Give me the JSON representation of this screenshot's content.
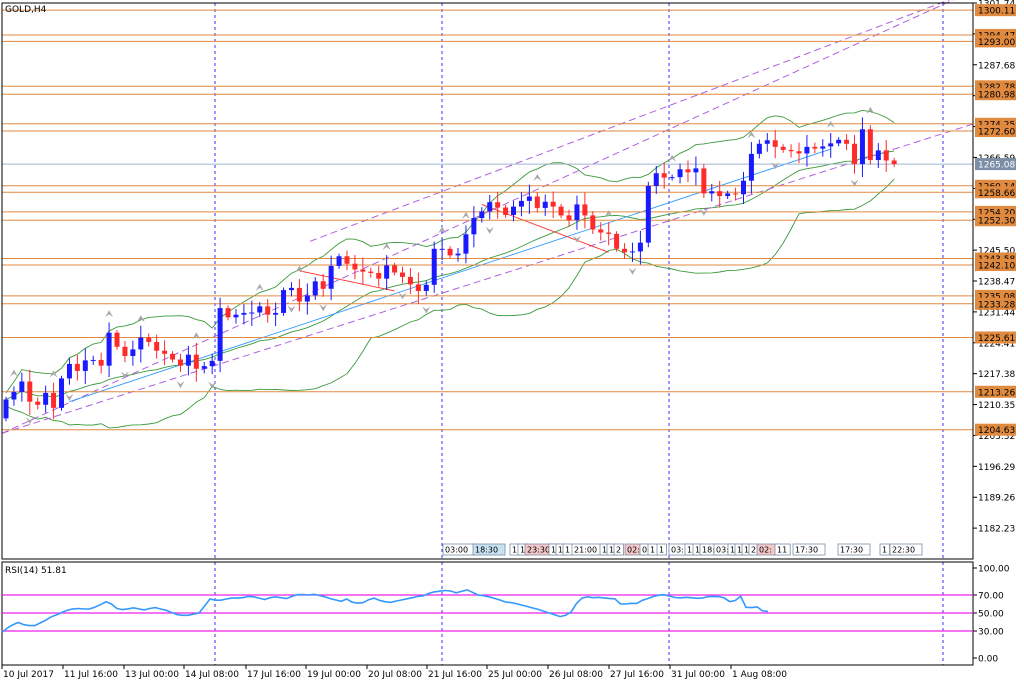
{
  "colors": {
    "bull": "#1a1aff",
    "bear": "#ff2a2a",
    "level": "#e08a40",
    "level_label_bg": "#e08a40",
    "current_label_bg": "#7a8ea6",
    "current_line": "#9fb4cc",
    "bands": "#3a9a3a",
    "channel": "#b060e0",
    "separator": "#3333ff",
    "trend": "#3399ff",
    "rsi": "#3399ff",
    "rsi_level": "#ee22ee",
    "arrow": "#a8a8a8",
    "zigzag": "#ff2a2a"
  },
  "chart_data": [
    {
      "type": "candlestick",
      "title": "GOLD,H4",
      "ylim": [
        1175.2,
        1301.74
      ],
      "y_ticks": [
        1301.74,
        1294.72,
        1287.68,
        1280.65,
        1273.62,
        1266.59,
        1259.55,
        1252.52,
        1245.5,
        1238.47,
        1231.44,
        1224.41,
        1217.38,
        1210.35,
        1203.32,
        1196.29,
        1189.26,
        1182.23
      ],
      "y_tick_labels": [
        "1301.74",
        "1294.72",
        "1287.68",
        "1280.65",
        "1273.62",
        "1266.59",
        "1259.55",
        "1252.52",
        "1245.50",
        "1238.47",
        "1231.44",
        "1224.41",
        "1217.38",
        "1210.35",
        "1203.32",
        "1196.29",
        "1189.26",
        "1182.23"
      ],
      "x_labels": [
        "10 Jul 2017",
        "11 Jul 16:00",
        "13 Jul 00:00",
        "14 Jul 08:00",
        "17 Jul 16:00",
        "19 Jul 00:00",
        "20 Jul 08:00",
        "21 Jul 16:00",
        "25 Jul 00:00",
        "26 Jul 08:00",
        "27 Jul 16:00",
        "31 Jul 00:00",
        "1 Aug 08:00"
      ],
      "horizontal_levels": [
        1300.11,
        1294.47,
        1293.0,
        1282.78,
        1280.98,
        1274.25,
        1272.6,
        1260.14,
        1258.66,
        1254.2,
        1252.3,
        1243.58,
        1242.1,
        1235.08,
        1233.28,
        1225.61,
        1213.26,
        1204.63
      ],
      "level_labels": [
        "1300.11",
        "1294.47",
        "1293.00",
        "1282.78",
        "1280.98",
        "1274.25",
        "1272.60",
        "1260.14",
        "1258.66",
        "1254.20",
        "1252.30",
        "1243.58",
        "1242.10",
        "1235.08",
        "1233.28",
        "1225.61",
        "1213.26",
        "1204.63"
      ],
      "current_price": 1265.08,
      "current_price_label": "1265.08",
      "closes": [
        1211.5,
        1213.2,
        1215.6,
        1211.0,
        1210.3,
        1213.0,
        1209.6,
        1216.3,
        1219.6,
        1218.0,
        1220.4,
        1220.5,
        1219.2,
        1226.7,
        1223.5,
        1221.4,
        1222.9,
        1225.6,
        1224.6,
        1222.6,
        1221.9,
        1220.6,
        1219.2,
        1221.7,
        1218.5,
        1219.1,
        1220.3,
        1232.3,
        1230.2,
        1230.8,
        1231.2,
        1231.3,
        1232.7,
        1230.8,
        1231.2,
        1236.4,
        1236.9,
        1233.8,
        1235.2,
        1238.4,
        1236.7,
        1241.9,
        1244.1,
        1242.4,
        1241.1,
        1240.6,
        1240.3,
        1239.0,
        1242.0,
        1240.4,
        1239.4,
        1237.7,
        1236.2,
        1237.6,
        1245.8,
        1245.8,
        1244.3,
        1244.7,
        1249.1,
        1252.8,
        1254.3,
        1256.4,
        1255.2,
        1253.5,
        1255.4,
        1256.7,
        1257.7,
        1255.1,
        1256.5,
        1255.4,
        1253.4,
        1252.3,
        1255.9,
        1253.4,
        1250.2,
        1249.5,
        1249.2,
        1245.8,
        1245.0,
        1245.2,
        1247.2,
        1260.1,
        1263.0,
        1262.0,
        1262.1,
        1263.9,
        1263.2,
        1264.1,
        1258.4,
        1258.9,
        1257.8,
        1258.4,
        1258.2,
        1261.3,
        1267.4,
        1269.7,
        1270.5,
        1269.0,
        1268.3,
        1268.0,
        1267.5,
        1269.0,
        1268.6,
        1269.1,
        1269.8,
        1270.6,
        1269.7,
        1265.1,
        1273.0,
        1266.0,
        1268.2,
        1265.9,
        1265.1
      ],
      "rsi": {
        "label": "RSI(14) 51.81",
        "ylim": [
          0,
          100
        ],
        "ticks": [
          100,
          70,
          50,
          30,
          0
        ],
        "tick_labels": [
          "100.00",
          "70.00",
          "50.00",
          "30.00",
          "0.00"
        ],
        "levels": [
          70,
          50,
          30
        ],
        "values": [
          28.5,
          33.5,
          37,
          39.5,
          37,
          36,
          36,
          39,
          42,
          45.8,
          48,
          50.8,
          53.2,
          54.6,
          55,
          54.4,
          54.6,
          56.5,
          59.2,
          62.5,
          60,
          55,
          53.8,
          54.6,
          55.8,
          54.6,
          53.5,
          55,
          56,
          54.5,
          53,
          50.5,
          48.2,
          47.4,
          47.5,
          48.8,
          50,
          57.5,
          65.5,
          64.2,
          64.2,
          65.5,
          66.5,
          66.8,
          67,
          68.5,
          68,
          66.5,
          65,
          67,
          68,
          67,
          66,
          68.5,
          70.4,
          70.5,
          70,
          70.8,
          69.5,
          68,
          66,
          64.5,
          63,
          65.5,
          62,
          61,
          61.5,
          64.8,
          66.5,
          64,
          62.6,
          61.8,
          63.2,
          64.5,
          65.8,
          67,
          68.5,
          69,
          71.8,
          73.4,
          74.2,
          75,
          74.5,
          72.5,
          74,
          75.8,
          73,
          70,
          69.2,
          68,
          66.2,
          64.5,
          62.2,
          61.5,
          60.4,
          58.8,
          57.2,
          55.5,
          54,
          52,
          50,
          48,
          46,
          47.4,
          51,
          60.5,
          66.5,
          68,
          67,
          67.5,
          66.8,
          66.2,
          65.8,
          60.2,
          60,
          60.8,
          60.6,
          64,
          66,
          68.2,
          69.8,
          70.2,
          68.8,
          67.2,
          66.8,
          67.5,
          67,
          66.3,
          66.5,
          68.2,
          68.4,
          68.2,
          66.8,
          62.7,
          63.9,
          68.5,
          56.3,
          56,
          56.8,
          52.3,
          51.81
        ]
      }
    }
  ],
  "chart": {
    "title": "GOLD,H4",
    "rsi_label": "RSI(14) 51.81"
  },
  "time_boxes": [
    "03:00",
    "18:30",
    "1",
    "1",
    "23:30",
    "1",
    "1",
    "1",
    "21:00",
    "1",
    "1",
    "2",
    "02:",
    "0",
    "1",
    "1",
    "03:",
    "1",
    "1",
    "18:",
    "03:",
    "1",
    "1",
    "1",
    "2",
    "02:",
    "11",
    "17:30",
    "17:30",
    "1",
    "22:30"
  ]
}
